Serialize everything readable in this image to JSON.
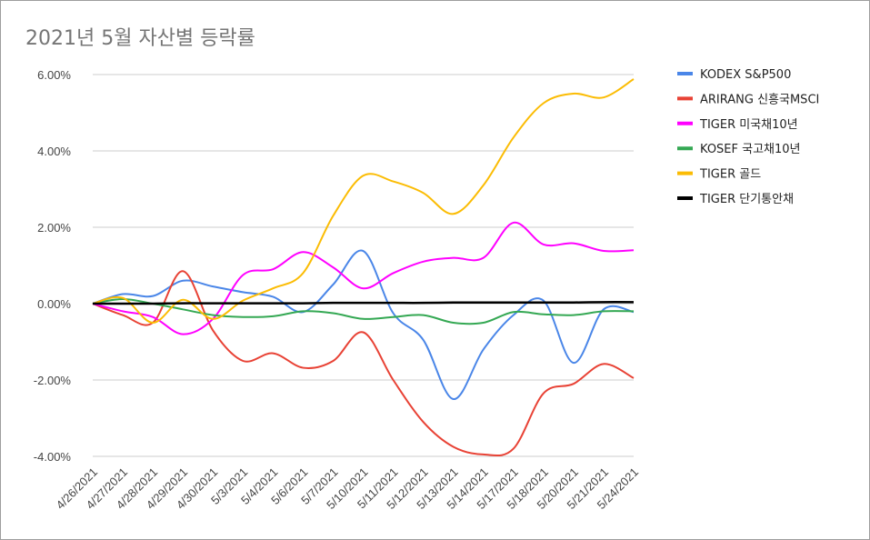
{
  "chart_data": {
    "type": "line",
    "title": "2021년 5월 자산별 등락률",
    "xlabel": "",
    "ylabel": "",
    "ylim": [
      -0.04,
      0.06
    ],
    "yticks": [
      0.06,
      0.04,
      0.02,
      0.0,
      -0.02,
      -0.04
    ],
    "ytick_labels": [
      "6.00%",
      "4.00%",
      "2.00%",
      "0.00%",
      "-2.00%",
      "-4.00%"
    ],
    "categories": [
      "4/26/2021",
      "4/27/2021",
      "4/28/2021",
      "4/29/2021",
      "4/30/2021",
      "5/3/2021",
      "5/4/2021",
      "5/6/2021",
      "5/7/2021",
      "5/10/2021",
      "5/11/2021",
      "5/12/2021",
      "5/13/2021",
      "5/14/2021",
      "5/17/2021",
      "5/18/2021",
      "5/20/2021",
      "5/21/2021",
      "5/24/2021"
    ],
    "grid": true,
    "smooth": true,
    "legend_position": "right",
    "series": [
      {
        "name": "KODEX S&P500",
        "color": "#4a86e8",
        "values": [
          0.0,
          0.0025,
          0.002,
          0.006,
          0.0045,
          0.003,
          0.0018,
          -0.0022,
          0.005,
          0.0138,
          -0.0025,
          -0.0095,
          -0.025,
          -0.012,
          -0.003,
          0.0008,
          -0.0155,
          -0.0015,
          -0.0022
        ]
      },
      {
        "name": "ARIRANG 신흥국MSCI",
        "color": "#e84235",
        "values": [
          0.0,
          -0.003,
          -0.005,
          0.0085,
          -0.007,
          -0.015,
          -0.013,
          -0.0168,
          -0.015,
          -0.0075,
          -0.02,
          -0.031,
          -0.0375,
          -0.0395,
          -0.038,
          -0.0235,
          -0.021,
          -0.0158,
          -0.0195
        ]
      },
      {
        "name": "TIGER 미국채10년",
        "color": "#ff00ff",
        "values": [
          0.0,
          -0.002,
          -0.0035,
          -0.008,
          -0.004,
          0.0075,
          0.009,
          0.0135,
          0.0095,
          0.004,
          0.008,
          0.011,
          0.012,
          0.012,
          0.0212,
          0.0155,
          0.0158,
          0.0138,
          0.014
        ]
      },
      {
        "name": "KOSEF 국고채10년",
        "color": "#34a853",
        "values": [
          0.0,
          0.0012,
          0.0,
          -0.0015,
          -0.003,
          -0.0035,
          -0.0033,
          -0.002,
          -0.0025,
          -0.004,
          -0.0035,
          -0.003,
          -0.005,
          -0.005,
          -0.0022,
          -0.0028,
          -0.003,
          -0.002,
          -0.002
        ]
      },
      {
        "name": "TIGER 골드",
        "color": "#fbbc04",
        "values": [
          0.0,
          0.0015,
          -0.005,
          0.001,
          -0.004,
          0.0008,
          0.004,
          0.008,
          0.023,
          0.0335,
          0.032,
          0.029,
          0.0235,
          0.031,
          0.0435,
          0.0525,
          0.055,
          0.054,
          0.0588
        ]
      },
      {
        "name": "TIGER 단기통안채",
        "color": "#000000",
        "values": [
          0.0,
          0.0,
          0.0,
          0.0001,
          0.0001,
          0.0001,
          0.0001,
          0.0001,
          0.0002,
          0.0002,
          0.0002,
          0.0002,
          0.0003,
          0.0003,
          0.0003,
          0.0003,
          0.0003,
          0.0004,
          0.0004
        ]
      }
    ]
  }
}
